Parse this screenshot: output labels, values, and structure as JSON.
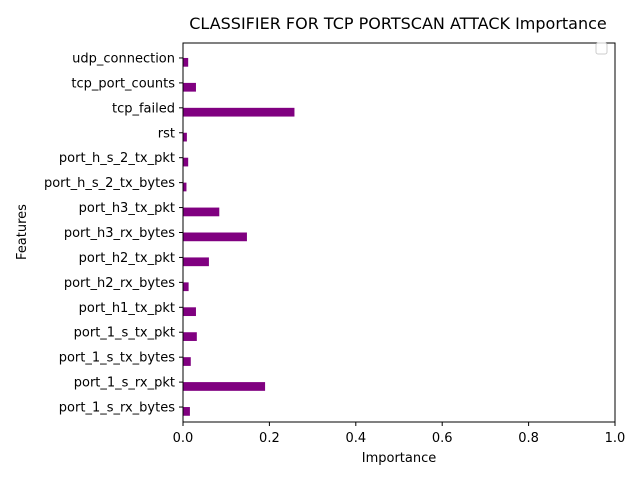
{
  "chart_data": {
    "type": "bar",
    "orientation": "horizontal",
    "title": "CLASSIFIER FOR TCP PORTSCAN ATTACK Importance",
    "xlabel": "Importance",
    "ylabel": "Features",
    "xlim": [
      0,
      1
    ],
    "xticks": [
      0,
      0.2,
      0.4,
      0.6,
      0.8,
      1
    ],
    "xtick_labels": [
      "0.0",
      "0.2",
      "0.4",
      "0.6",
      "0.8",
      "1.0"
    ],
    "grid": false,
    "legend": "upper right (empty)",
    "bar_color": "#800080",
    "categories": [
      "port_1_s_rx_bytes",
      "port_1_s_rx_pkt",
      "port_1_s_tx_bytes",
      "port_1_s_tx_pkt",
      "port_h1_tx_pkt",
      "port_h2_rx_bytes",
      "port_h2_tx_pkt",
      "port_h3_rx_bytes",
      "port_h3_tx_pkt",
      "port_h_s_2_tx_bytes",
      "port_h_s_2_tx_pkt",
      "rst",
      "tcp_failed",
      "tcp_port_counts",
      "udp_connection"
    ],
    "values": [
      0.016,
      0.19,
      0.018,
      0.032,
      0.03,
      0.013,
      0.06,
      0.148,
      0.084,
      0.008,
      0.012,
      0.009,
      0.258,
      0.03,
      0.012
    ]
  }
}
